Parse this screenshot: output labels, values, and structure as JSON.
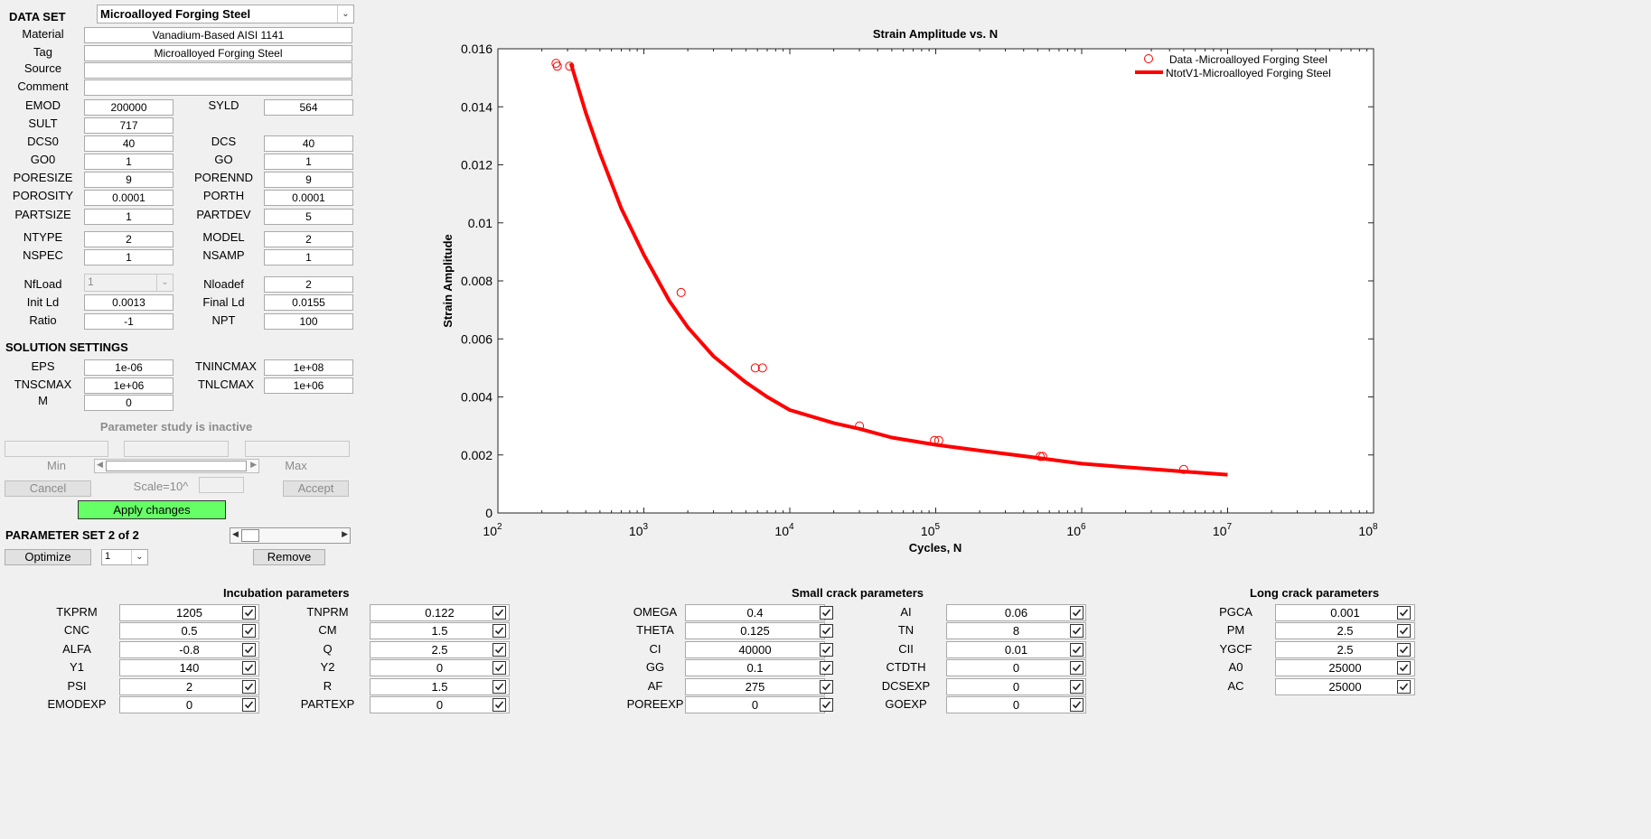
{
  "data_set": {
    "header": "DATA SET",
    "selected": "Microalloyed Forging Steel",
    "material_label": "Material",
    "material_value": "Vanadium-Based AISI 1141",
    "tag_label": "Tag",
    "tag_value": "Microalloyed Forging Steel",
    "source_label": "Source",
    "source_value": "",
    "comment_label": "Comment",
    "comment_value": ""
  },
  "props": {
    "emod": {
      "label": "EMOD",
      "value": "200000"
    },
    "syld": {
      "label": "SYLD",
      "value": "564"
    },
    "sult": {
      "label": "SULT",
      "value": "717"
    },
    "dcs0": {
      "label": "DCS0",
      "value": "40"
    },
    "dcs": {
      "label": "DCS",
      "value": "40"
    },
    "go0": {
      "label": "GO0",
      "value": "1"
    },
    "go": {
      "label": "GO",
      "value": "1"
    },
    "poresize": {
      "label": "PORESIZE",
      "value": "9"
    },
    "porennd": {
      "label": "PORENND",
      "value": "9"
    },
    "porosity": {
      "label": "POROSITY",
      "value": "0.0001"
    },
    "porth": {
      "label": "PORTH",
      "value": "0.0001"
    },
    "partsize": {
      "label": "PARTSIZE",
      "value": "1"
    },
    "partdev": {
      "label": "PARTDEV",
      "value": "5"
    },
    "ntype": {
      "label": "NTYPE",
      "value": "2"
    },
    "model": {
      "label": "MODEL",
      "value": "2"
    },
    "nspec": {
      "label": "NSPEC",
      "value": "1"
    },
    "nsamp": {
      "label": "NSAMP",
      "value": "1"
    },
    "nfload": {
      "label": "NfLoad",
      "value": "1"
    },
    "nloadef": {
      "label": "Nloadef",
      "value": "2"
    },
    "initld": {
      "label": "Init Ld",
      "value": "0.0013"
    },
    "finalld": {
      "label": "Final Ld",
      "value": "0.0155"
    },
    "ratio": {
      "label": "Ratio",
      "value": "-1"
    },
    "npt": {
      "label": "NPT",
      "value": "100"
    }
  },
  "solution": {
    "header": "SOLUTION SETTINGS",
    "eps": {
      "label": "EPS",
      "value": "1e-06"
    },
    "tnincmax": {
      "label": "TNINCMAX",
      "value": "1e+08"
    },
    "tnscmax": {
      "label": "TNSCMAX",
      "value": "1e+06"
    },
    "tnlcmax": {
      "label": "TNLCMAX",
      "value": "1e+06"
    },
    "m": {
      "label": "M",
      "value": "0"
    }
  },
  "param_study": {
    "status": "Parameter study is inactive",
    "min_label": "Min",
    "max_label": "Max",
    "cancel": "Cancel",
    "scale": "Scale=10^",
    "accept": "Accept",
    "apply": "Apply changes",
    "set_label": "PARAMETER SET 2 of 2",
    "optimize": "Optimize",
    "opt_value": "1",
    "remove": "Remove"
  },
  "incubation": {
    "header": "Incubation parameters",
    "rows": [
      {
        "l1": "TKPRM",
        "v1": "1205",
        "l2": "TNPRM",
        "v2": "0.122"
      },
      {
        "l1": "CNC",
        "v1": "0.5",
        "l2": "CM",
        "v2": "1.5"
      },
      {
        "l1": "ALFA",
        "v1": "-0.8",
        "l2": "Q",
        "v2": "2.5"
      },
      {
        "l1": "Y1",
        "v1": "140",
        "l2": "Y2",
        "v2": "0"
      },
      {
        "l1": "PSI",
        "v1": "2",
        "l2": "R",
        "v2": "1.5"
      },
      {
        "l1": "EMODEXP",
        "v1": "0",
        "l2": "PARTEXP",
        "v2": "0"
      }
    ]
  },
  "small_crack": {
    "header": "Small crack parameters",
    "rows": [
      {
        "l1": "OMEGA",
        "v1": "0.4",
        "l2": "AI",
        "v2": "0.06"
      },
      {
        "l1": "THETA",
        "v1": "0.125",
        "l2": "TN",
        "v2": "8"
      },
      {
        "l1": "CI",
        "v1": "40000",
        "l2": "CII",
        "v2": "0.01"
      },
      {
        "l1": "GG",
        "v1": "0.1",
        "l2": "CTDTH",
        "v2": "0"
      },
      {
        "l1": "AF",
        "v1": "275",
        "l2": "DCSEXP",
        "v2": "0"
      },
      {
        "l1": "POREEXP",
        "v1": "0",
        "l2": "GOEXP",
        "v2": "0"
      }
    ]
  },
  "long_crack": {
    "header": "Long crack parameters",
    "rows": [
      {
        "l": "PGCA",
        "v": "0.001"
      },
      {
        "l": "PM",
        "v": "2.5"
      },
      {
        "l": "YGCF",
        "v": "2.5"
      },
      {
        "l": "A0",
        "v": "25000"
      },
      {
        "l": "AC",
        "v": "25000"
      }
    ]
  },
  "chart_data": {
    "type": "line",
    "title": "Strain Amplitude vs. N",
    "xlabel": "Cycles, N",
    "ylabel": "Strain Amplitude",
    "xscale": "log",
    "xlim": [
      100,
      100000000
    ],
    "ylim": [
      0,
      0.016
    ],
    "xticks": [
      "10^2",
      "10^3",
      "10^4",
      "10^5",
      "10^6",
      "10^7",
      "10^8"
    ],
    "yticks": [
      "0",
      "0.002",
      "0.004",
      "0.006",
      "0.008",
      "0.01",
      "0.012",
      "0.014",
      "0.016"
    ],
    "legend_position": "top-right",
    "colors": {
      "series": "#ff0000"
    },
    "series": [
      {
        "name": "Data -Microalloyed Forging Steel",
        "kind": "scatter",
        "x": [
          250,
          255,
          310,
          1800,
          5800,
          6500,
          30000,
          98000,
          105000,
          520000,
          540000,
          5000000
        ],
        "y": [
          0.0155,
          0.0154,
          0.0154,
          0.0076,
          0.005,
          0.005,
          0.003,
          0.0025,
          0.0025,
          0.00195,
          0.00195,
          0.0015
        ]
      },
      {
        "name": "NtotV1-Microalloyed Forging Steel",
        "kind": "line",
        "x": [
          316,
          400,
          500,
          700,
          1000,
          1500,
          2000,
          3000,
          5000,
          7000,
          10000,
          20000,
          30000,
          50000,
          100000,
          200000,
          500000,
          1000000,
          2000000,
          5000000,
          10000000
        ],
        "y": [
          0.0155,
          0.0138,
          0.0124,
          0.0105,
          0.0089,
          0.0073,
          0.0064,
          0.0054,
          0.0045,
          0.004,
          0.00355,
          0.0031,
          0.0029,
          0.0026,
          0.00235,
          0.00215,
          0.0019,
          0.0017,
          0.00158,
          0.00143,
          0.00132
        ]
      }
    ]
  }
}
